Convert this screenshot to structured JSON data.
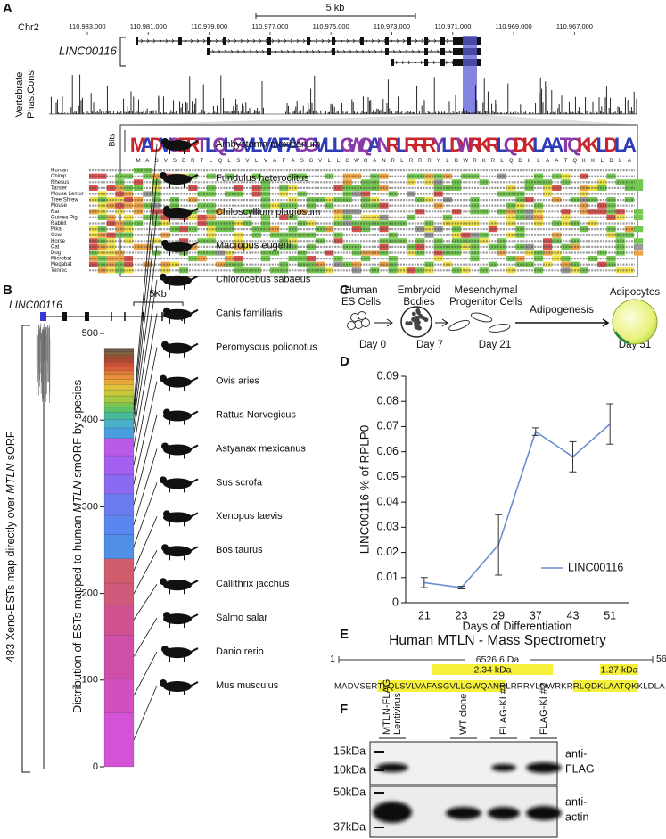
{
  "panel_a": {
    "label": "A",
    "chromosome": "Chr2",
    "coordinates": [
      "110,983,000",
      "110,981,000",
      "110,979,000",
      "110,977,000",
      "110,975,000",
      "110,973,000",
      "110,971,000",
      "110,969,000",
      "110,967,000"
    ],
    "scale": "5 kb",
    "gene": "LINC00116",
    "track": [
      "Vertebrate",
      "PhastCons"
    ],
    "logo_axis": "Bits",
    "logo": "MADVSERTLQLSVLVAFASGVLLGWQANRLRRRYLDWRKRLQDKLAATQKKLDLA",
    "species": [
      "Human",
      "Chimp",
      "Rhesus",
      "Tarsier",
      "Mouse Lemur",
      "Tree Shrew",
      "Mouse",
      "Rat",
      "Guinea Pig",
      "Rabbit",
      "Pika",
      "Cow",
      "Horse",
      "Cat",
      "Dog",
      "Microbat",
      "Megabat",
      "Tenrec"
    ]
  },
  "panel_b": {
    "label": "B",
    "gene": "LINC00116",
    "scale": "5Kb",
    "bracket_label": [
      "483 Xeno-ESTs map directly over ",
      "MTLN",
      " sORF"
    ]
  },
  "panel_c": {
    "label": "C",
    "stages": [
      {
        "lines": [
          "Human",
          "ES Cells"
        ],
        "day": "Day 0"
      },
      {
        "lines": [
          "Embryoid",
          "Bodies"
        ],
        "day": "Day 7"
      },
      {
        "lines": [
          "Mesenchymal",
          "Progenitor Cells"
        ],
        "day": "Day 21"
      },
      {
        "lines": [
          "Adipocytes"
        ],
        "day": "Day 51"
      }
    ],
    "process": "Adipogenesis"
  },
  "chart_data": [
    {
      "type": "bar",
      "stacked": true,
      "y_label": [
        "Distribution of ESTs mapped to human ",
        "MTLN",
        " smORF by species"
      ],
      "ylim": [
        0,
        500
      ],
      "yticks": [
        0,
        100,
        200,
        300,
        400,
        500
      ],
      "series": [
        {
          "name": "Mus musculus",
          "color": "#d452d6",
          "values": [
            62
          ]
        },
        {
          "name": "Danio rerio",
          "color": "#d14fbf",
          "values": [
            40
          ]
        },
        {
          "name": "Salmo salar",
          "color": "#cf4fa8",
          "values": [
            50
          ]
        },
        {
          "name": "Callithrix jacchus",
          "color": "#d0518f",
          "values": [
            35
          ]
        },
        {
          "name": "Bos taurus",
          "color": "#cf5a7c",
          "values": [
            25
          ]
        },
        {
          "name": "Xenopus laevis",
          "color": "#d05c6c",
          "values": [
            28
          ]
        },
        {
          "name": "Sus scrofa",
          "color": "#4f8fe6",
          "values": [
            28
          ]
        },
        {
          "name": "Astyanax mexicanus",
          "color": "#5a86ef",
          "values": [
            22
          ]
        },
        {
          "name": "Rattus Norvegicus",
          "color": "#6b7cf0",
          "values": [
            25
          ]
        },
        {
          "name": "Ovis aries",
          "color": "#8a6af0",
          "values": [
            22
          ]
        },
        {
          "name": "Peromyscus polionotus",
          "color": "#a25ff0",
          "values": [
            22
          ]
        },
        {
          "name": "Canis familiaris",
          "color": "#bb5ae8",
          "values": [
            20
          ]
        },
        {
          "name": "Chlorocebus sabaeus",
          "color": "#4a9ee0",
          "values": [
            12
          ]
        },
        {
          "name": "Macropus eugenii",
          "color": "#4ab0c8",
          "values": [
            10
          ]
        },
        {
          "name": "Chiloscyllium plagiosum",
          "color": "#4ab89a",
          "values": [
            8
          ]
        },
        {
          "name": "Fundulus heteroclitus",
          "color": "#5cbf6a",
          "values": [
            6
          ]
        },
        {
          "name": "Ambystoma mexicanum",
          "color": "#7cc44f",
          "values": [
            5
          ]
        },
        {
          "name": null,
          "color": "#a4c83f",
          "values": [
            8
          ]
        },
        {
          "name": null,
          "color": "#c8c83a",
          "values": [
            7
          ]
        },
        {
          "name": null,
          "color": "#e0c03a",
          "values": [
            6
          ]
        },
        {
          "name": null,
          "color": "#e8a83a",
          "values": [
            6
          ]
        },
        {
          "name": null,
          "color": "#e8903a",
          "values": [
            5
          ]
        },
        {
          "name": null,
          "color": "#e07838",
          "values": [
            5
          ]
        },
        {
          "name": null,
          "color": "#d86038",
          "values": [
            5
          ]
        },
        {
          "name": null,
          "color": "#c85038",
          "values": [
            5
          ]
        },
        {
          "name": null,
          "color": "#b04a30",
          "values": [
            4
          ]
        },
        {
          "name": null,
          "color": "#985030",
          "values": [
            4
          ]
        },
        {
          "name": null,
          "color": "#806040",
          "values": [
            4
          ]
        },
        {
          "name": null,
          "color": "#6a5a48",
          "values": [
            4
          ]
        }
      ]
    },
    {
      "type": "line",
      "panel_label": "D",
      "y_label": "LINC00116 % of RPLP0",
      "x_label": "Days of Differentiation",
      "categories": [
        21,
        23,
        29,
        37,
        43,
        51
      ],
      "series": [
        {
          "name": "LINC00116",
          "color": "#6a8fd0",
          "values": [
            0.008,
            0.006,
            0.023,
            0.068,
            0.058,
            0.071
          ],
          "errors": [
            0.002,
            0.0005,
            0.012,
            0.0015,
            0.006,
            0.008
          ]
        }
      ],
      "ylim": [
        0,
        0.09
      ],
      "yticks": [
        0,
        0.01,
        0.02,
        0.03,
        0.04,
        0.05,
        0.06,
        0.07,
        0.08,
        0.09
      ],
      "legend": "lower-right"
    }
  ],
  "panel_e": {
    "label": "E",
    "title": "Human MTLN - Mass Spectrometry",
    "start": "1",
    "end": "56",
    "mass": "6526.6 Da",
    "peptides": [
      "2.34 kDa",
      "1.27 kDa"
    ],
    "sequence": [
      {
        "text": "MADVSER",
        "detected": false
      },
      {
        "text": "TLQLSVLVAFASGVLLGWQANR",
        "detected": true
      },
      {
        "text": "LRRRYLDWRKR",
        "detected": false
      },
      {
        "text": "RLQDKLAATQK",
        "detected": true
      },
      {
        "text": "KLDLA",
        "detected": false
      }
    ]
  },
  "panel_f": {
    "label": "F",
    "lanes": [
      [
        "MTLN-FLAG",
        "Lentivirus"
      ],
      [
        "WT clone"
      ],
      [
        "FLAG-KI #1"
      ],
      [
        "FLAG-KI #2"
      ]
    ],
    "markers": [
      "15kDa",
      "10kDa",
      "50kDa",
      "37kDa"
    ],
    "antibodies": [
      [
        "anti-",
        "FLAG"
      ],
      [
        "anti-",
        "actin"
      ]
    ]
  }
}
